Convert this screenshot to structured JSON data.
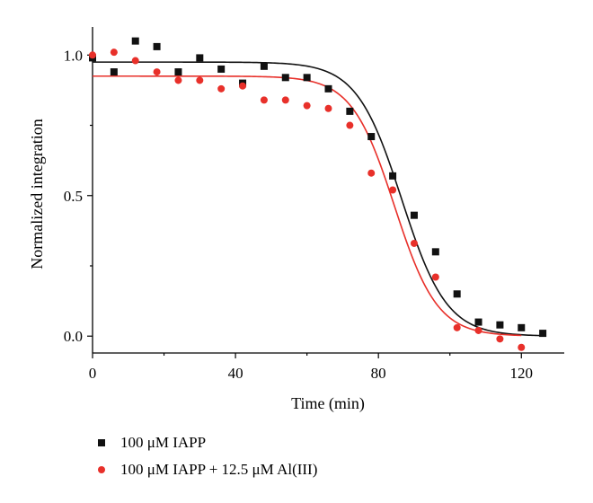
{
  "chart_data": {
    "type": "scatter",
    "xlabel": "Time (min)",
    "ylabel": "Normalized integration",
    "xlim": [
      0,
      132
    ],
    "ylim": [
      -0.06,
      1.1
    ],
    "xticks": [
      0,
      40,
      80,
      120
    ],
    "xtick_labels": [
      "0",
      "40",
      "80",
      "120"
    ],
    "yticks": [
      0.0,
      0.5,
      1.0
    ],
    "ytick_labels": [
      "0.0",
      "0.5",
      "1.0"
    ],
    "legend_position": "bottom-left",
    "series": [
      {
        "name": "100 μM IAPP",
        "marker": "square",
        "color": "#111111",
        "x": [
          0,
          6,
          12,
          18,
          24,
          30,
          36,
          42,
          48,
          54,
          60,
          66,
          72,
          78,
          84,
          90,
          96,
          102,
          108,
          114,
          120,
          126
        ],
        "y": [
          0.99,
          0.94,
          1.05,
          1.03,
          0.94,
          0.99,
          0.95,
          0.9,
          0.96,
          0.92,
          0.92,
          0.88,
          0.8,
          0.71,
          0.57,
          0.43,
          0.3,
          0.15,
          0.05,
          0.04,
          0.03,
          0.01
        ],
        "fit": {
          "top": 0.975,
          "bottom": 0.0,
          "x50": 86.5,
          "slope": 6.3,
          "x_range": [
            0,
            126
          ]
        }
      },
      {
        "name": "100 μM IAPP + 12.5 μM Al(III)",
        "marker": "circle",
        "color": "#e8302a",
        "x": [
          0,
          6,
          12,
          18,
          24,
          30,
          36,
          42,
          48,
          54,
          60,
          66,
          72,
          78,
          84,
          90,
          96,
          102,
          108,
          114,
          120
        ],
        "y": [
          1.0,
          1.01,
          0.98,
          0.94,
          0.91,
          0.91,
          0.88,
          0.89,
          0.84,
          0.84,
          0.82,
          0.81,
          0.75,
          0.58,
          0.52,
          0.33,
          0.21,
          0.03,
          0.02,
          -0.01,
          -0.04
        ],
        "fit": {
          "top": 0.925,
          "bottom": 0.0,
          "x50": 84.5,
          "slope": 6.0,
          "x_range": [
            0,
            120
          ]
        }
      }
    ]
  },
  "legend": {
    "items": [
      {
        "label": "100 μM IAPP"
      },
      {
        "label": "100 μM IAPP + 12.5 μM Al(III)"
      }
    ]
  }
}
